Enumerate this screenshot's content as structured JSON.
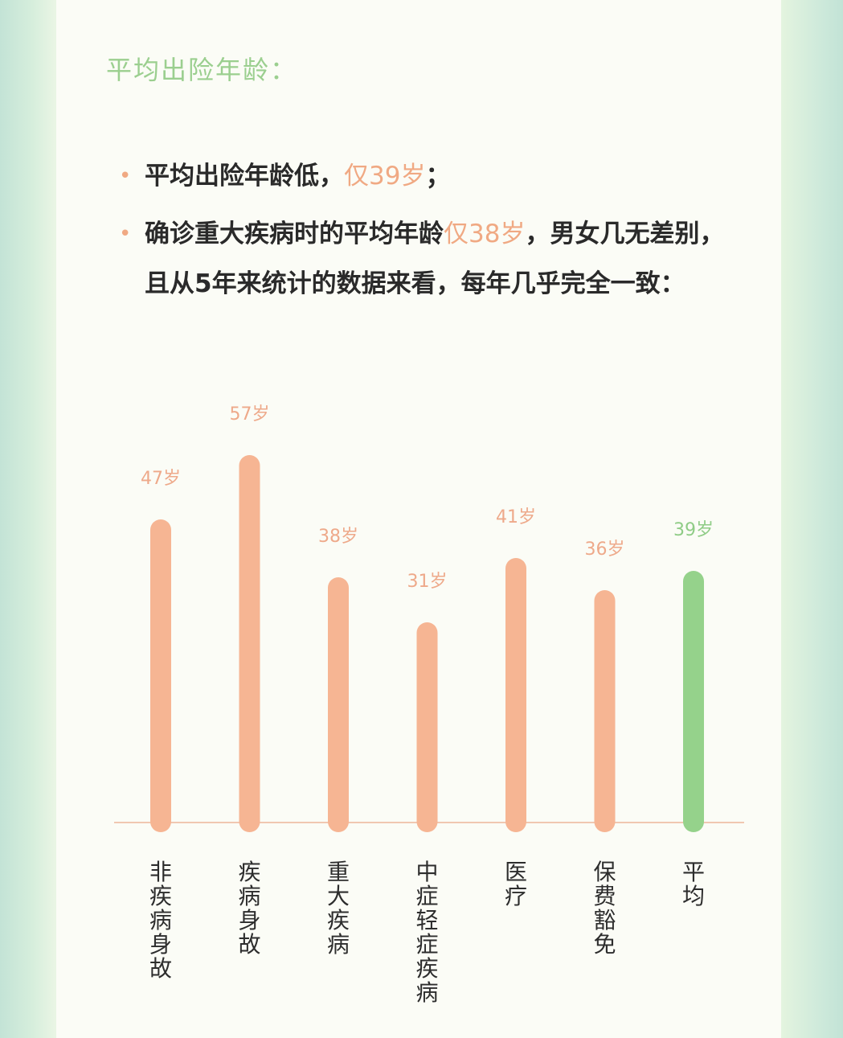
{
  "section_title": "平均出险年龄：",
  "bullets": [
    {
      "dot": "•",
      "text_before": "平均出险年龄低，",
      "highlight": "仅39岁",
      "text_after": "；"
    },
    {
      "dot": "•",
      "text_before": "确诊重大疾病时的平均年龄",
      "highlight": "仅38岁",
      "text_after": "，男女几无差别，且从5年来统计的数据来看，每年几乎完全一致："
    }
  ],
  "colors": {
    "bar": "#f6b593",
    "bar_highlight": "#95d28b",
    "value_label": "#eea98a",
    "value_label_highlight": "#8fcc86",
    "title": "#9bcf8f",
    "axis": "#f0c7b1"
  },
  "chart_data": {
    "type": "bar",
    "categories": [
      "非疾病身故",
      "疾病身故",
      "重大疾病",
      "中症轻症疾病",
      "医疗",
      "保费豁免",
      "平均"
    ],
    "values": [
      47,
      57,
      38,
      31,
      41,
      36,
      39
    ],
    "value_labels": [
      "47岁",
      "57岁",
      "38岁",
      "31岁",
      "41岁",
      "36岁",
      "39岁"
    ],
    "highlight_index": 6,
    "ylim": [
      0,
      60
    ],
    "grid": false,
    "legend": "none"
  }
}
